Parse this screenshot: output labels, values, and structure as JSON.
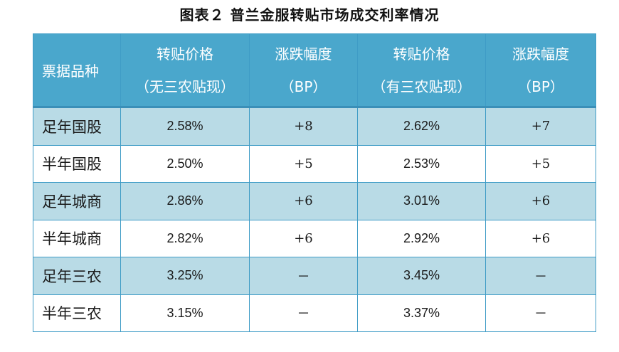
{
  "title": "图表２ 普兰金服转贴市场成交利率情况",
  "chart_data": {
    "type": "table",
    "title": "图表２ 普兰金服转贴市场成交利率情况",
    "columns": [
      {
        "line1": "票据品种",
        "line2": ""
      },
      {
        "line1": "转贴价格",
        "line2": "（无三农贴现）"
      },
      {
        "line1": "涨跌幅度",
        "line2": "（BP）"
      },
      {
        "line1": "转贴价格",
        "line2": "（有三农贴现）"
      },
      {
        "line1": "涨跌幅度",
        "line2": "（BP）"
      }
    ],
    "rows": [
      {
        "name": "足年国股",
        "price_no_agri": "2.58%",
        "chg_no_agri": "+8",
        "price_agri": "2.62%",
        "chg_agri": "+7"
      },
      {
        "name": "半年国股",
        "price_no_agri": "2.50%",
        "chg_no_agri": "+5",
        "price_agri": "2.53%",
        "chg_agri": "+5"
      },
      {
        "name": "足年城商",
        "price_no_agri": "2.86%",
        "chg_no_agri": "+6",
        "price_agri": "3.01%",
        "chg_agri": "+6"
      },
      {
        "name": "半年城商",
        "price_no_agri": "2.82%",
        "chg_no_agri": "+6",
        "price_agri": "2.92%",
        "chg_agri": "+6"
      },
      {
        "name": "足年三农",
        "price_no_agri": "3.25%",
        "chg_no_agri": "－",
        "price_agri": "3.45%",
        "chg_agri": "－"
      },
      {
        "name": "半年三农",
        "price_no_agri": "3.15%",
        "chg_no_agri": "－",
        "price_agri": "3.37%",
        "chg_agri": "－"
      }
    ]
  },
  "colors": {
    "header_bg": "#4aa7cc",
    "header_text": "#ffffff",
    "shaded_row": "#b9dbe6",
    "plain_row": "#ffffff",
    "border": "#3f9cc6"
  }
}
